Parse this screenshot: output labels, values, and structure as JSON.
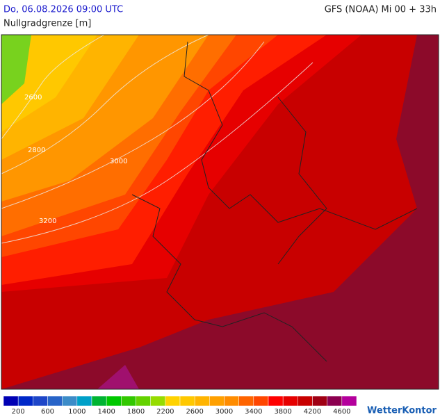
{
  "header": {
    "valid_time": "Do, 06.08.2026 09:00 UTC",
    "model_run": "GFS (NOAA) Mi 00 + 33h",
    "parameter": "Nullgradgrenze [m]"
  },
  "map": {
    "contour_labels": [
      "2600",
      "2800",
      "3000",
      "3200"
    ]
  },
  "legend": {
    "labels": [
      "200",
      "600",
      "1000",
      "1400",
      "1800",
      "2200",
      "2600",
      "3000",
      "3400",
      "3800",
      "4200",
      "4600"
    ],
    "colors": [
      "#0000b4",
      "#0028c8",
      "#1e46c8",
      "#2864c8",
      "#3c8cc8",
      "#00a0c8",
      "#00b432",
      "#00c800",
      "#32c800",
      "#64d200",
      "#96dc00",
      "#ffd200",
      "#ffc800",
      "#ffb400",
      "#ffa000",
      "#ff8c00",
      "#ff6400",
      "#ff4600",
      "#ff0000",
      "#e60000",
      "#c80000",
      "#a00014",
      "#8c0050",
      "#b4009c"
    ]
  },
  "logo": "WetterKontor"
}
